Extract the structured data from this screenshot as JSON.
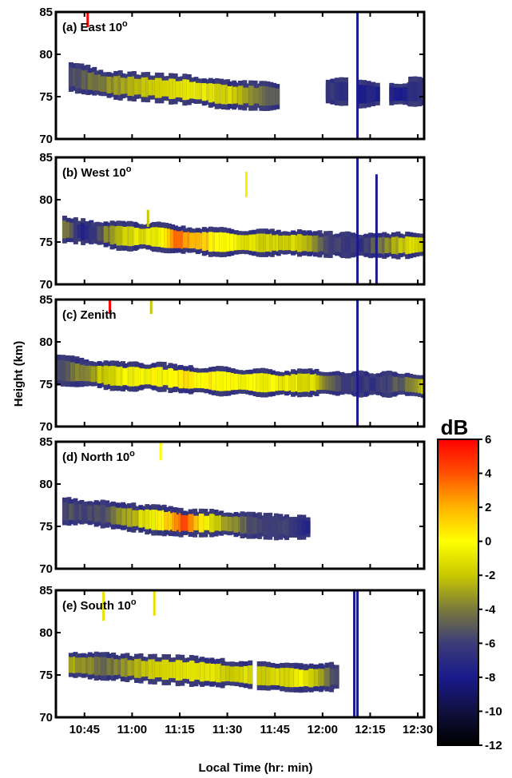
{
  "chart_data": {
    "type": "heatmap",
    "xlabel": "Local Time (hr: min)",
    "ylabel": "Height (km)",
    "x_ticks": [
      "10:45",
      "11:00",
      "11:15",
      "11:30",
      "11:45",
      "12:00",
      "12:15",
      "12:30"
    ],
    "x_range_min": [
      636,
      752
    ],
    "y_ticks": [
      70,
      75,
      80,
      85
    ],
    "ylim": [
      70,
      85
    ],
    "colorbar": {
      "title": "dB",
      "range": [
        -12,
        6
      ],
      "ticks": [
        6,
        4,
        2,
        0,
        -2,
        -4,
        -6,
        -8,
        -10,
        -12
      ],
      "colors": [
        "#000000",
        "#101040",
        "#1a1a8c",
        "#3c3c78",
        "#7a7a3c",
        "#c8c800",
        "#ffff00",
        "#ffb400",
        "#ff5000",
        "#ff0000"
      ]
    },
    "panels": [
      {
        "label": "(a)",
        "title": "East 10",
        "deg": "o",
        "layer": [
          [
            640,
            77.4,
            1.6,
            -5
          ],
          [
            652,
            76.4,
            1.6,
            -3
          ],
          [
            665,
            76.1,
            1.6,
            -1
          ],
          [
            678,
            75.8,
            1.7,
            0
          ],
          [
            690,
            75.2,
            1.6,
            -1
          ],
          [
            700,
            75.1,
            1.6,
            -3
          ],
          [
            706,
            75.0,
            1.5,
            -5
          ]
        ],
        "spots": [
          [
            724,
            75.6,
            1.5,
            -6
          ],
          [
            734,
            75.3,
            1.5,
            -7
          ],
          [
            744,
            75.3,
            1.4,
            -7
          ],
          [
            750,
            75.6,
            1.6,
            -6
          ]
        ],
        "gap_from": 709,
        "gap_to": 720,
        "marks": [
          [
            646,
            84.7,
            1.5,
            6
          ]
        ],
        "vlines": [
          [
            731,
            70,
            85
          ]
        ]
      },
      {
        "label": "(b)",
        "title": "West 10",
        "deg": "o",
        "layer": [
          [
            638,
            76.5,
            1.5,
            -3
          ],
          [
            645,
            76.2,
            1.4,
            -7
          ],
          [
            657,
            75.7,
            1.6,
            -1
          ],
          [
            668,
            75.6,
            1.6,
            0
          ],
          [
            674,
            75.3,
            1.6,
            4
          ],
          [
            686,
            75.0,
            1.6,
            1
          ],
          [
            700,
            74.9,
            1.5,
            -1
          ],
          [
            712,
            74.9,
            1.5,
            -1
          ],
          [
            722,
            74.7,
            1.4,
            -5
          ],
          [
            733,
            74.6,
            1.4,
            -6
          ],
          [
            746,
            74.6,
            1.5,
            -1
          ],
          [
            752,
            74.7,
            1.5,
            -1
          ]
        ],
        "spots": [],
        "gap_from": 0,
        "gap_to": 0,
        "marks": [
          [
            696,
            81.8,
            1.5,
            0.5
          ],
          [
            665,
            77.8,
            1.0,
            -2
          ]
        ],
        "vlines": [
          [
            731,
            70,
            85
          ],
          [
            737,
            70,
            83
          ]
        ]
      },
      {
        "label": "(c)",
        "title": "Zenith",
        "deg": "",
        "layer": [
          [
            636,
            76.7,
            1.7,
            -5
          ],
          [
            645,
            76.3,
            1.6,
            -3
          ],
          [
            657,
            75.9,
            1.6,
            0
          ],
          [
            668,
            75.9,
            1.6,
            0.5
          ],
          [
            678,
            75.5,
            1.6,
            1
          ],
          [
            692,
            75.3,
            1.6,
            0.5
          ],
          [
            706,
            75.1,
            1.5,
            0
          ],
          [
            718,
            75.2,
            1.5,
            -1
          ],
          [
            724,
            75.1,
            1.4,
            -5
          ],
          [
            735,
            75.0,
            1.4,
            -6
          ],
          [
            746,
            75.0,
            1.4,
            -4
          ],
          [
            752,
            74.7,
            1.5,
            -1
          ]
        ],
        "spots": [],
        "gap_from": 0,
        "gap_to": 0,
        "marks": [
          [
            653,
            84.3,
            1.0,
            6
          ],
          [
            666,
            84.3,
            1.0,
            -2
          ]
        ],
        "vlines": [
          [
            731,
            70,
            85
          ]
        ]
      },
      {
        "label": "(d)",
        "title": "North 10",
        "deg": "o",
        "layer": [
          [
            638,
            76.8,
            1.5,
            -5
          ],
          [
            650,
            76.5,
            1.5,
            -5
          ],
          [
            660,
            76.0,
            1.6,
            -2
          ],
          [
            672,
            75.6,
            1.7,
            2
          ],
          [
            676,
            75.4,
            1.5,
            5
          ],
          [
            686,
            75.4,
            1.5,
            -1
          ],
          [
            698,
            75.1,
            1.4,
            -5
          ],
          [
            708,
            74.9,
            1.4,
            -5
          ],
          [
            716,
            74.9,
            1.3,
            -7
          ]
        ],
        "spots": [],
        "gap_from": 0,
        "gap_to": 0,
        "marks": [
          [
            669,
            83.9,
            1.1,
            0
          ]
        ],
        "vlines": []
      },
      {
        "label": "(e)",
        "title": "South 10",
        "deg": "o",
        "layer": [
          [
            640,
            76.2,
            1.6,
            -2
          ],
          [
            652,
            76.0,
            1.5,
            -4
          ],
          [
            665,
            75.7,
            1.6,
            -1
          ],
          [
            678,
            75.5,
            1.7,
            0
          ],
          [
            688,
            75.2,
            1.6,
            -1
          ],
          [
            705,
            74.8,
            1.5,
            -1
          ],
          [
            714,
            74.6,
            1.6,
            0
          ],
          [
            724,
            74.8,
            1.6,
            -5
          ]
        ],
        "spots": [],
        "gap_from": 695,
        "gap_to": 701,
        "marks": [
          [
            651,
            83.1,
            1.7,
            -1
          ],
          [
            667,
            83.5,
            1.5,
            -1
          ]
        ],
        "vlines": [
          [
            730,
            70,
            85
          ],
          [
            731,
            70,
            85
          ]
        ]
      }
    ]
  }
}
